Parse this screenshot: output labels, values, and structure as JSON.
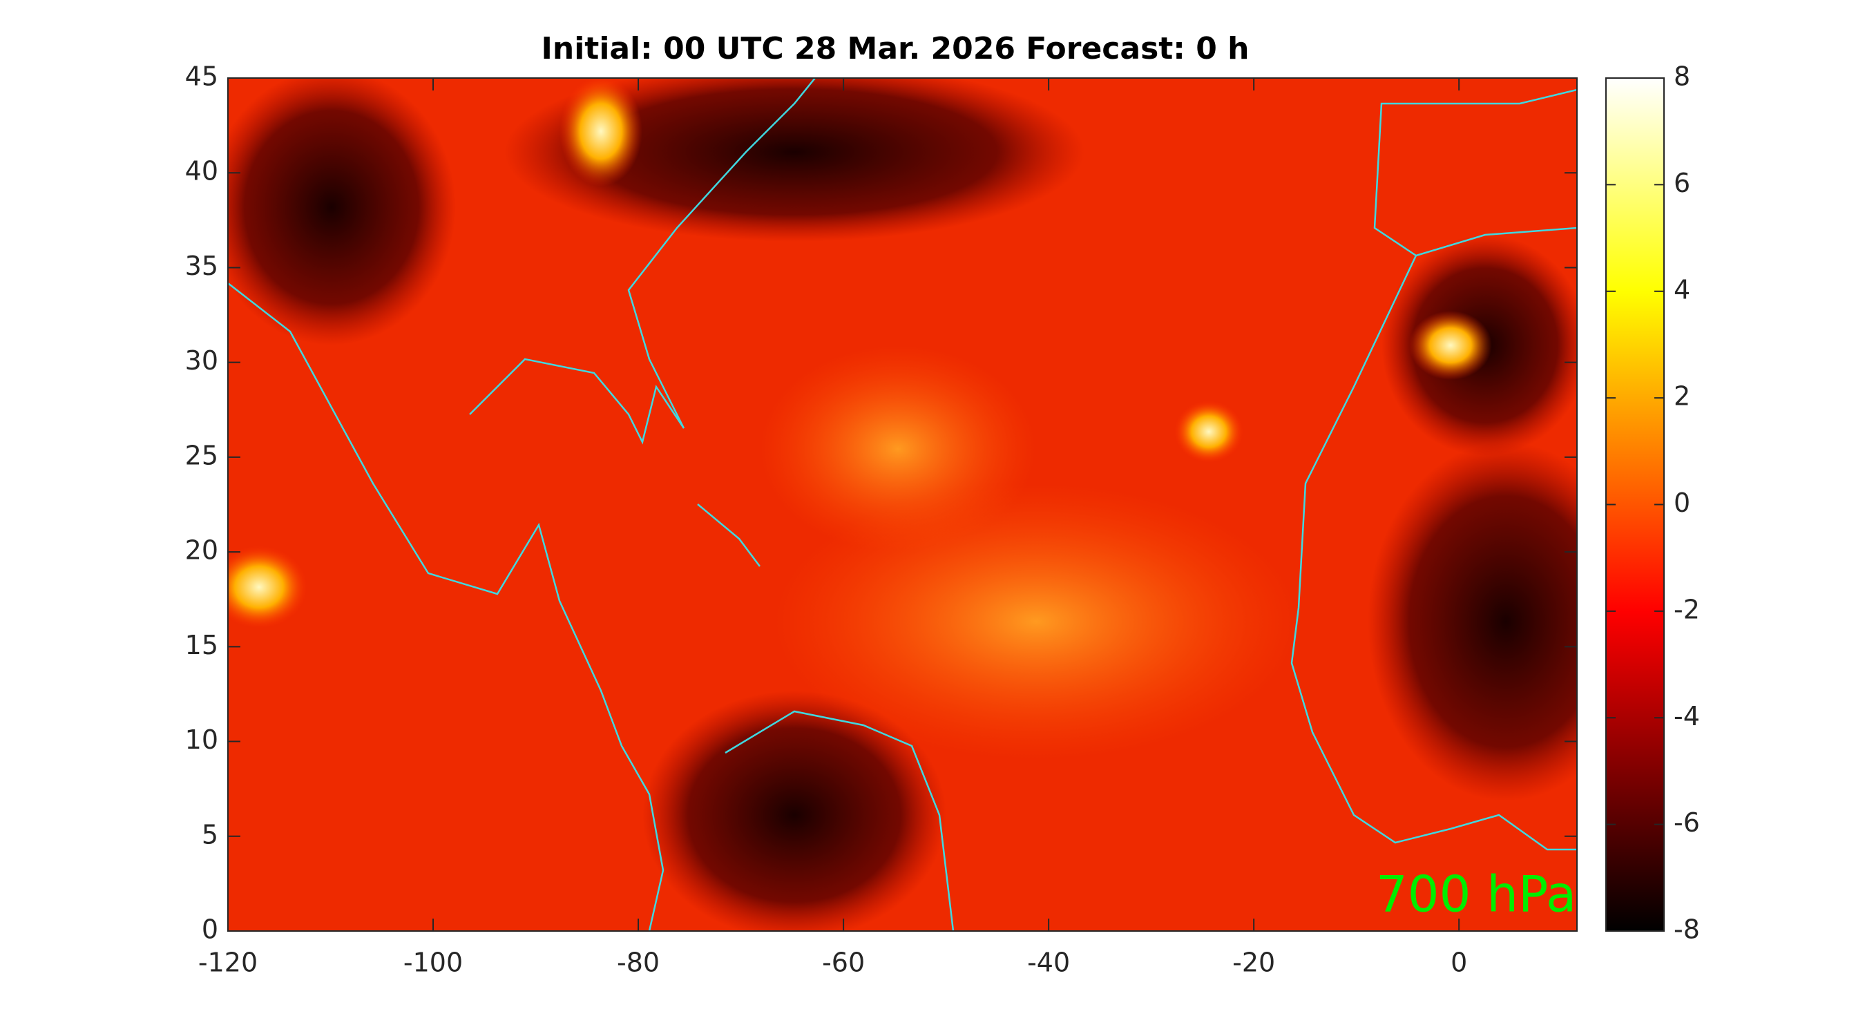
{
  "chart_data": {
    "type": "heatmap",
    "title": "Initial: 00 UTC 28 Mar. 2026 Forecast: 0 h",
    "xlim": [
      -120,
      11.5
    ],
    "xticks": [
      -120,
      -100,
      -80,
      -60,
      -40,
      -20,
      0
    ],
    "ylim": [
      0,
      45
    ],
    "yticks": [
      0,
      5,
      10,
      15,
      20,
      25,
      30,
      35,
      40,
      45
    ],
    "colorbar": {
      "lim": [
        -8,
        8
      ],
      "ticks": [
        -8,
        -6,
        -4,
        -2,
        0,
        2,
        4,
        6,
        8
      ]
    },
    "annotation": "700 hPa",
    "annotation_color": "#00ee00"
  }
}
